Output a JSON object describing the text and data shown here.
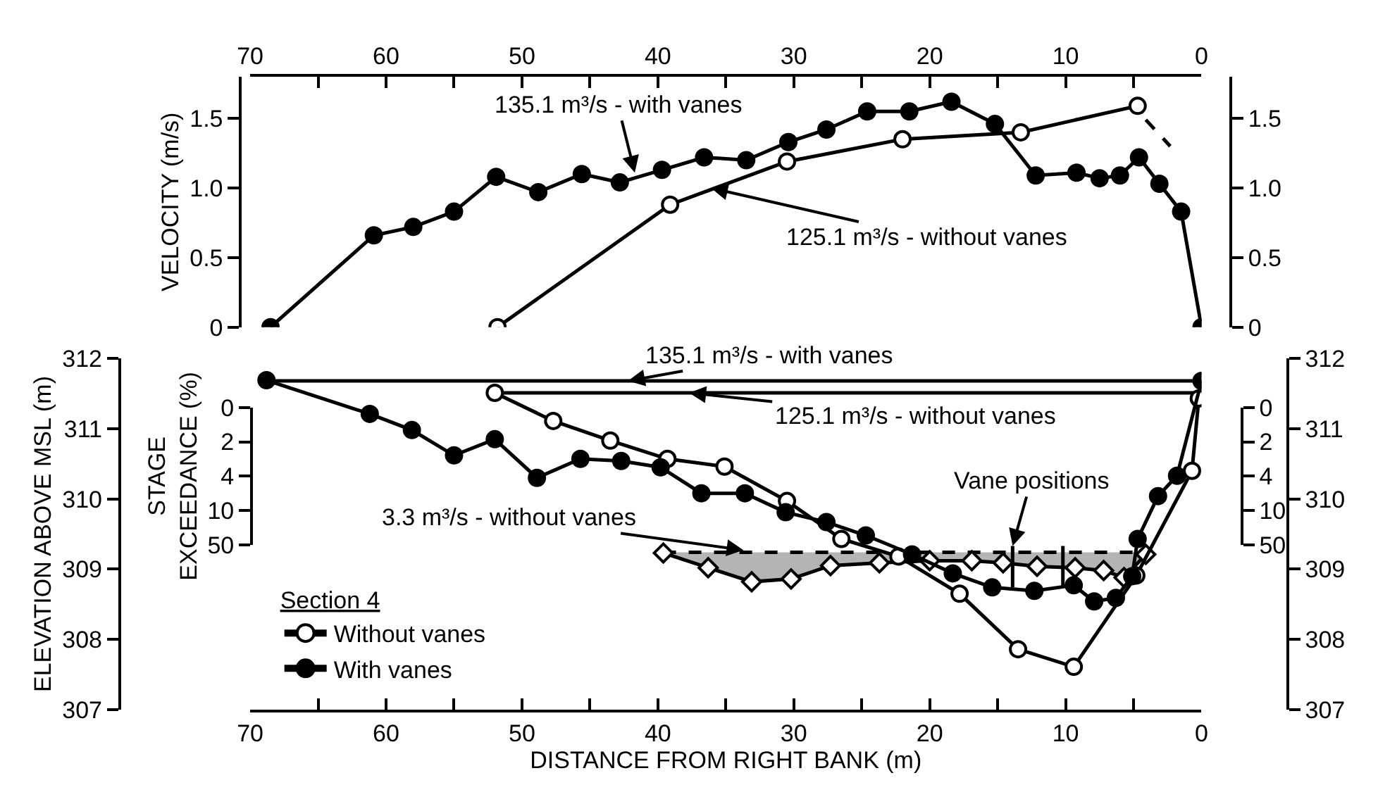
{
  "chart_data": [
    {
      "type": "line",
      "ylabel": "VELOCITY (m/s)",
      "xlim": [
        70,
        0
      ],
      "xticks": [
        70,
        {
          "value": 65,
          "label": null
        },
        60,
        {
          "value": 55,
          "label": null
        },
        50,
        {
          "value": 45,
          "label": null
        },
        40,
        {
          "value": 35,
          "label": null
        },
        30,
        {
          "value": 25,
          "label": null
        },
        20,
        {
          "value": 15,
          "label": null
        },
        10,
        {
          "value": 5,
          "label": null
        },
        0
      ],
      "ylim": [
        0,
        1.8
      ],
      "yticks": [
        0,
        0.5,
        {
          "value": 1,
          "label": "1.0"
        },
        1.5
      ],
      "y2lim": [
        0,
        1.8
      ],
      "y2ticks": [
        0,
        0.5,
        {
          "value": 1,
          "label": "1.0"
        },
        1.5
      ],
      "grid": false,
      "legend": false,
      "series": [
        {
          "color": "#000000",
          "marker": "circle",
          "x": [
            68.5,
            60.9,
            58.0,
            55.0,
            51.9,
            48.8,
            45.6,
            42.8,
            39.7,
            36.6,
            33.5,
            30.4,
            27.6,
            24.6,
            21.5,
            18.4,
            15.2,
            12.2,
            9.2,
            7.5,
            6.0,
            4.6,
            3.1,
            1.5,
            0
          ],
          "values": [
            0,
            0.66,
            0.72,
            0.83,
            1.08,
            0.97,
            1.1,
            1.04,
            1.13,
            1.22,
            1.2,
            1.33,
            1.42,
            1.55,
            1.55,
            1.62,
            1.46,
            1.09,
            1.11,
            1.07,
            1.09,
            1.22,
            1.03,
            0.83,
            0
          ]
        },
        {
          "color": "#000000",
          "marker": "circle-open",
          "x": [
            51.8,
            39.1,
            30.5,
            22.0,
            13.3,
            4.7
          ],
          "values": [
            0,
            0.88,
            1.19,
            1.35,
            1.4,
            1.59
          ]
        },
        {
          "color": "#000000",
          "marker": "none",
          "line_style": "dashed",
          "x": [
            4.1,
            2.3
          ],
          "values": [
            1.49,
            1.3
          ]
        }
      ],
      "annotations": [
        {
          "text": "135.1 m³/s - with vanes",
          "x": 41.7,
          "y": 1.11
        },
        {
          "text": "125.1 m³/s - without vanes",
          "x": 36.1,
          "y": 1.0
        }
      ]
    },
    {
      "type": "line",
      "xlabel": "DISTANCE FROM RIGHT BANK (m)",
      "ylabel": "ELEVATION ABOVE MSL (m)",
      "xlim": [
        70,
        0
      ],
      "xticks": [
        70,
        {
          "value": 65,
          "label": null
        },
        60,
        {
          "value": 55,
          "label": null
        },
        50,
        {
          "value": 45,
          "label": null
        },
        40,
        {
          "value": 35,
          "label": null
        },
        30,
        {
          "value": 25,
          "label": null
        },
        20,
        {
          "value": 15,
          "label": null
        },
        10,
        {
          "value": 5,
          "label": null
        },
        0
      ],
      "ylim": [
        307,
        312
      ],
      "yticks": [
        307,
        308,
        309,
        310,
        311,
        312
      ],
      "y2lim": [
        307,
        312
      ],
      "y2ticks": [
        307,
        308,
        309,
        310,
        311,
        312
      ],
      "grid": false,
      "legend": "bottom left",
      "legend_title": "Section 4",
      "series": [
        {
          "color": "#000000",
          "x": [
            68.8,
            0
          ],
          "values": [
            311.68,
            311.68
          ]
        },
        {
          "color": "#000000",
          "x": [
            52.0,
            0
          ],
          "values": [
            311.51,
            311.51
          ]
        },
        {
          "color": "#000000",
          "line_style": "dashed",
          "x": [
            39.6,
            4.7
          ],
          "values": [
            309.24,
            309.24
          ]
        },
        {
          "color": "#000000",
          "marker": "diamond-open",
          "x": [
            39.6,
            36.3,
            33.1,
            30.2,
            27.3,
            23.7,
            20.0,
            16.9,
            14.6,
            12.1,
            9.3,
            7.2,
            5.7,
            4.1
          ],
          "values": [
            309.23,
            309.02,
            308.82,
            308.86,
            309.05,
            309.09,
            309.12,
            309.12,
            309.09,
            309.04,
            309.02,
            308.98,
            308.88,
            309.21
          ]
        },
        {
          "name": "Without vanes",
          "color": "#000000",
          "marker": "circle-open",
          "x": [
            52.0,
            47.7,
            43.5,
            39.3,
            35.1,
            30.5,
            26.5,
            22.3,
            17.8,
            13.5,
            9.4,
            4.8,
            0.7,
            0.2
          ],
          "values": [
            311.51,
            311.11,
            310.83,
            310.57,
            310.46,
            309.97,
            309.43,
            309.18,
            308.65,
            307.86,
            307.61,
            308.91,
            310.4,
            311.43
          ]
        },
        {
          "name": "With vanes",
          "color": "#000000",
          "marker": "circle",
          "x": [
            68.8,
            61.2,
            58.1,
            55.0,
            52.0,
            48.9,
            45.7,
            42.7,
            39.8,
            36.8,
            33.6,
            30.6,
            27.6,
            24.7,
            21.3,
            18.3,
            15.4,
            12.3,
            9.4,
            7.9,
            6.3,
            5.1,
            4.7,
            3.2,
            1.8,
            0
          ],
          "values": [
            311.69,
            311.21,
            310.98,
            310.62,
            310.85,
            310.3,
            310.57,
            310.54,
            310.45,
            310.08,
            310.08,
            309.81,
            309.67,
            309.48,
            309.21,
            308.94,
            308.74,
            308.69,
            308.77,
            308.54,
            308.59,
            308.9,
            309.43,
            310.04,
            310.33,
            311.68
          ]
        },
        {
          "color": "#000000",
          "marker": "none",
          "x": [
            13.9,
            13.9
          ],
          "values": [
            308.74,
            309.33
          ]
        },
        {
          "color": "#000000",
          "marker": "none",
          "x": [
            10.2,
            10.2
          ],
          "values": [
            308.74,
            309.33
          ]
        }
      ],
      "annotations": [
        {
          "text": "135.1 m³/s - with vanes",
          "x": 42.2,
          "y": 311.68
        },
        {
          "text": "125.1 m³/s - without vanes",
          "x": 37.7,
          "y": 311.51
        },
        {
          "text": "3.3 m³/s - without vanes",
          "x": 33.7,
          "y": 309.27
        },
        {
          "text": "Vane positions",
          "x": 13.9,
          "y": 309.33
        }
      ]
    },
    {
      "type": "other",
      "ylabel": "STAGE EXCEEDANCE (%)",
      "annotations": [
        "0",
        "2",
        "4",
        "10",
        "50",
        "0",
        "2",
        "4",
        "10",
        "50"
      ]
    }
  ]
}
